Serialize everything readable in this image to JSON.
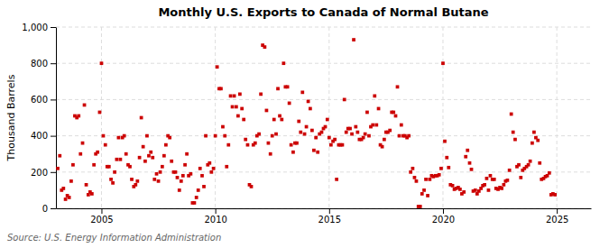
{
  "chart_data": {
    "type": "scatter",
    "title": "Monthly U.S. Exports to Canada of Normal Butane",
    "ylabel": "Thousand Barrels",
    "annotations": [
      "Source: U.S. Energy Information Administration"
    ],
    "color": "#cc0000",
    "marker": "square",
    "grid": true,
    "xlim": [
      2003.0,
      2026.5
    ],
    "ylim": [
      0,
      1000
    ],
    "xticks": [
      2005,
      2010,
      2015,
      2020,
      2025
    ],
    "yticks": [
      0,
      200,
      400,
      600,
      800,
      {
        "value": 1000,
        "label": "1,000"
      }
    ],
    "x": [
      2003.08,
      2003.17,
      2003.25,
      2003.33,
      2003.42,
      2003.5,
      2003.58,
      2003.67,
      2003.75,
      2003.83,
      2003.92,
      2004,
      2004.08,
      2004.17,
      2004.25,
      2004.33,
      2004.42,
      2004.5,
      2004.58,
      2004.67,
      2004.75,
      2004.83,
      2004.92,
      2005,
      2005.08,
      2005.17,
      2005.25,
      2005.33,
      2005.42,
      2005.5,
      2005.58,
      2005.67,
      2005.75,
      2005.83,
      2005.92,
      2006,
      2006.08,
      2006.17,
      2006.25,
      2006.33,
      2006.42,
      2006.5,
      2006.58,
      2006.67,
      2006.75,
      2006.83,
      2006.92,
      2007,
      2007.08,
      2007.17,
      2007.25,
      2007.33,
      2007.42,
      2007.5,
      2007.58,
      2007.67,
      2007.75,
      2007.83,
      2007.92,
      2008,
      2008.08,
      2008.17,
      2008.25,
      2008.33,
      2008.42,
      2008.5,
      2008.58,
      2008.67,
      2008.75,
      2008.83,
      2008.92,
      2009,
      2009.08,
      2009.17,
      2009.25,
      2009.33,
      2009.42,
      2009.5,
      2009.58,
      2009.67,
      2009.75,
      2009.83,
      2009.92,
      2010,
      2010.08,
      2010.17,
      2010.25,
      2010.33,
      2010.42,
      2010.5,
      2010.58,
      2010.67,
      2010.75,
      2010.83,
      2010.92,
      2011,
      2011.08,
      2011.17,
      2011.25,
      2011.33,
      2011.42,
      2011.5,
      2011.58,
      2011.67,
      2011.75,
      2011.83,
      2011.92,
      2012,
      2012.08,
      2012.17,
      2012.25,
      2012.33,
      2012.42,
      2012.5,
      2012.58,
      2012.67,
      2012.75,
      2012.83,
      2012.92,
      2013,
      2013.08,
      2013.17,
      2013.25,
      2013.33,
      2013.42,
      2013.5,
      2013.58,
      2013.67,
      2013.75,
      2013.83,
      2013.92,
      2014,
      2014.08,
      2014.17,
      2014.25,
      2014.33,
      2014.42,
      2014.5,
      2014.58,
      2014.67,
      2014.75,
      2014.83,
      2014.92,
      2015,
      2015.08,
      2015.17,
      2015.25,
      2015.33,
      2015.42,
      2015.5,
      2015.58,
      2015.67,
      2015.75,
      2015.83,
      2015.92,
      2016,
      2016.08,
      2016.17,
      2016.25,
      2016.33,
      2016.42,
      2016.5,
      2016.58,
      2016.67,
      2016.75,
      2016.83,
      2016.92,
      2017,
      2017.08,
      2017.17,
      2017.25,
      2017.33,
      2017.42,
      2017.5,
      2017.58,
      2017.67,
      2017.75,
      2017.83,
      2017.92,
      2018,
      2018.08,
      2018.17,
      2018.25,
      2018.33,
      2018.42,
      2018.5,
      2018.58,
      2018.67,
      2018.75,
      2018.83,
      2018.92,
      2019,
      2019.08,
      2019.17,
      2019.25,
      2019.33,
      2019.42,
      2019.5,
      2019.58,
      2019.67,
      2019.75,
      2019.83,
      2019.92,
      2020,
      2020.08,
      2020.17,
      2020.25,
      2020.33,
      2020.42,
      2020.5,
      2020.58,
      2020.67,
      2020.75,
      2020.83,
      2020.92,
      2021,
      2021.08,
      2021.17,
      2021.25,
      2021.33,
      2021.42,
      2021.5,
      2021.58,
      2021.67,
      2021.75,
      2021.83,
      2021.92,
      2022,
      2022.08,
      2022.17,
      2022.25,
      2022.33,
      2022.42,
      2022.5,
      2022.58,
      2022.67,
      2022.75,
      2022.83,
      2022.92,
      2023,
      2023.08,
      2023.17,
      2023.25,
      2023.33,
      2023.42,
      2023.5,
      2023.58,
      2023.67,
      2023.75,
      2023.83,
      2023.92,
      2024,
      2024.08,
      2024.17,
      2024.25,
      2024.33,
      2024.42,
      2024.5,
      2024.58,
      2024.67,
      2024.75,
      2024.83,
      2024.92
    ],
    "values": [
      220,
      290,
      100,
      110,
      50,
      70,
      60,
      150,
      240,
      510,
      500,
      510,
      300,
      360,
      570,
      130,
      75,
      90,
      80,
      240,
      300,
      310,
      530,
      800,
      400,
      350,
      230,
      230,
      160,
      140,
      200,
      270,
      390,
      270,
      390,
      400,
      300,
      240,
      230,
      160,
      120,
      130,
      150,
      280,
      500,
      340,
      260,
      400,
      290,
      310,
      280,
      160,
      190,
      150,
      200,
      230,
      290,
      350,
      400,
      390,
      260,
      200,
      200,
      170,
      100,
      150,
      180,
      240,
      300,
      180,
      190,
      30,
      30,
      60,
      100,
      220,
      180,
      120,
      400,
      240,
      250,
      200,
      220,
      400,
      780,
      660,
      660,
      450,
      400,
      230,
      350,
      620,
      560,
      620,
      560,
      510,
      630,
      550,
      490,
      380,
      350,
      130,
      120,
      350,
      360,
      400,
      410,
      630,
      900,
      890,
      540,
      360,
      300,
      400,
      490,
      410,
      660,
      510,
      490,
      800,
      670,
      670,
      580,
      350,
      310,
      360,
      360,
      480,
      420,
      640,
      410,
      450,
      590,
      550,
      430,
      320,
      390,
      310,
      410,
      420,
      440,
      450,
      490,
      390,
      350,
      370,
      380,
      160,
      350,
      350,
      350,
      600,
      420,
      440,
      440,
      410,
      930,
      450,
      420,
      380,
      380,
      390,
      410,
      530,
      400,
      450,
      460,
      620,
      460,
      550,
      350,
      340,
      380,
      420,
      420,
      430,
      530,
      530,
      510,
      670,
      400,
      460,
      400,
      400,
      390,
      400,
      200,
      220,
      170,
      150,
      10,
      10,
      80,
      100,
      160,
      70,
      160,
      180,
      175,
      180,
      180,
      185,
      220,
      800,
      370,
      280,
      225,
      130,
      125,
      105,
      110,
      115,
      105,
      80,
      90,
      285,
      320,
      250,
      215,
      95,
      100,
      80,
      95,
      110,
      125,
      130,
      165,
      100,
      180,
      160,
      160,
      110,
      105,
      115,
      110,
      130,
      150,
      155,
      210,
      520,
      420,
      380,
      230,
      240,
      170,
      210,
      220,
      230,
      240,
      260,
      360,
      420,
      390,
      375,
      250,
      160,
      165,
      175,
      180,
      195,
      75,
      80,
      75
    ]
  }
}
